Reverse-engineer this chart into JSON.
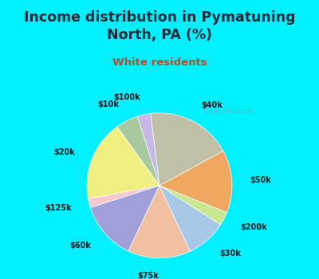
{
  "title": "Income distribution in Pymatuning\nNorth, PA (%)",
  "subtitle": "White residents",
  "labels": [
    "$100k",
    "$10k",
    "$20k",
    "$125k",
    "$60k",
    "$75k",
    "$30k",
    "$200k",
    "$50k",
    "$40k"
  ],
  "values": [
    3,
    5,
    18,
    2,
    13,
    14,
    9,
    3,
    14,
    19
  ],
  "colors": [
    "#c8b8e8",
    "#a8c8a0",
    "#f0f080",
    "#f8c8d0",
    "#a0a0d8",
    "#f0c0a0",
    "#a8c8e8",
    "#c8e890",
    "#f0a860",
    "#c0c0a8"
  ],
  "bg_cyan": "#00f0ff",
  "bg_chart": "#d0ece8",
  "title_color": "#1a2a3a",
  "subtitle_color": "#b05030",
  "label_fontsize": 7.0,
  "title_fontsize": 12.5,
  "subtitle_fontsize": 9.5,
  "startangle": 97,
  "label_distance": 1.25,
  "fig_width": 4.0,
  "fig_height": 3.5,
  "dpi": 100
}
